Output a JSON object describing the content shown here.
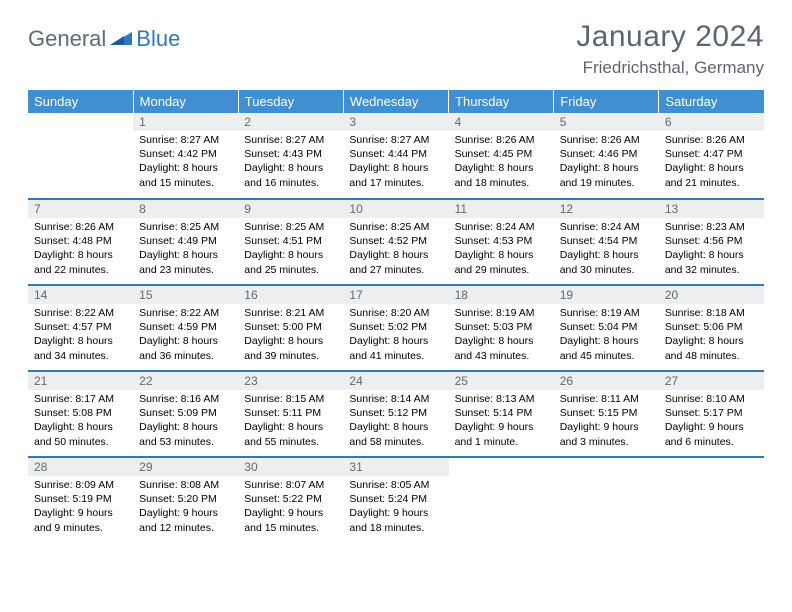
{
  "brand": {
    "part1": "General",
    "part2": "Blue"
  },
  "title": "January 2024",
  "location": "Friedrichsthal, Germany",
  "colors": {
    "header_bg": "#3f8fd2",
    "row_divider": "#2f78bc",
    "daynum_bg": "#eceeef",
    "title_color": "#5c6670",
    "brand_gray": "#5f6a72",
    "brand_blue": "#2f78bc"
  },
  "calendar": {
    "type": "table",
    "columns": [
      "Sunday",
      "Monday",
      "Tuesday",
      "Wednesday",
      "Thursday",
      "Friday",
      "Saturday"
    ],
    "cell_font_size_pt": 10.5,
    "header_font_size_pt": 13,
    "title_font_size_pt": 30,
    "weeks": [
      [
        null,
        {
          "n": "1",
          "sr": "8:27 AM",
          "ss": "4:42 PM",
          "dl": "8 hours and 15 minutes."
        },
        {
          "n": "2",
          "sr": "8:27 AM",
          "ss": "4:43 PM",
          "dl": "8 hours and 16 minutes."
        },
        {
          "n": "3",
          "sr": "8:27 AM",
          "ss": "4:44 PM",
          "dl": "8 hours and 17 minutes."
        },
        {
          "n": "4",
          "sr": "8:26 AM",
          "ss": "4:45 PM",
          "dl": "8 hours and 18 minutes."
        },
        {
          "n": "5",
          "sr": "8:26 AM",
          "ss": "4:46 PM",
          "dl": "8 hours and 19 minutes."
        },
        {
          "n": "6",
          "sr": "8:26 AM",
          "ss": "4:47 PM",
          "dl": "8 hours and 21 minutes."
        }
      ],
      [
        {
          "n": "7",
          "sr": "8:26 AM",
          "ss": "4:48 PM",
          "dl": "8 hours and 22 minutes."
        },
        {
          "n": "8",
          "sr": "8:25 AM",
          "ss": "4:49 PM",
          "dl": "8 hours and 23 minutes."
        },
        {
          "n": "9",
          "sr": "8:25 AM",
          "ss": "4:51 PM",
          "dl": "8 hours and 25 minutes."
        },
        {
          "n": "10",
          "sr": "8:25 AM",
          "ss": "4:52 PM",
          "dl": "8 hours and 27 minutes."
        },
        {
          "n": "11",
          "sr": "8:24 AM",
          "ss": "4:53 PM",
          "dl": "8 hours and 29 minutes."
        },
        {
          "n": "12",
          "sr": "8:24 AM",
          "ss": "4:54 PM",
          "dl": "8 hours and 30 minutes."
        },
        {
          "n": "13",
          "sr": "8:23 AM",
          "ss": "4:56 PM",
          "dl": "8 hours and 32 minutes."
        }
      ],
      [
        {
          "n": "14",
          "sr": "8:22 AM",
          "ss": "4:57 PM",
          "dl": "8 hours and 34 minutes."
        },
        {
          "n": "15",
          "sr": "8:22 AM",
          "ss": "4:59 PM",
          "dl": "8 hours and 36 minutes."
        },
        {
          "n": "16",
          "sr": "8:21 AM",
          "ss": "5:00 PM",
          "dl": "8 hours and 39 minutes."
        },
        {
          "n": "17",
          "sr": "8:20 AM",
          "ss": "5:02 PM",
          "dl": "8 hours and 41 minutes."
        },
        {
          "n": "18",
          "sr": "8:19 AM",
          "ss": "5:03 PM",
          "dl": "8 hours and 43 minutes."
        },
        {
          "n": "19",
          "sr": "8:19 AM",
          "ss": "5:04 PM",
          "dl": "8 hours and 45 minutes."
        },
        {
          "n": "20",
          "sr": "8:18 AM",
          "ss": "5:06 PM",
          "dl": "8 hours and 48 minutes."
        }
      ],
      [
        {
          "n": "21",
          "sr": "8:17 AM",
          "ss": "5:08 PM",
          "dl": "8 hours and 50 minutes."
        },
        {
          "n": "22",
          "sr": "8:16 AM",
          "ss": "5:09 PM",
          "dl": "8 hours and 53 minutes."
        },
        {
          "n": "23",
          "sr": "8:15 AM",
          "ss": "5:11 PM",
          "dl": "8 hours and 55 minutes."
        },
        {
          "n": "24",
          "sr": "8:14 AM",
          "ss": "5:12 PM",
          "dl": "8 hours and 58 minutes."
        },
        {
          "n": "25",
          "sr": "8:13 AM",
          "ss": "5:14 PM",
          "dl": "9 hours and 1 minute."
        },
        {
          "n": "26",
          "sr": "8:11 AM",
          "ss": "5:15 PM",
          "dl": "9 hours and 3 minutes."
        },
        {
          "n": "27",
          "sr": "8:10 AM",
          "ss": "5:17 PM",
          "dl": "9 hours and 6 minutes."
        }
      ],
      [
        {
          "n": "28",
          "sr": "8:09 AM",
          "ss": "5:19 PM",
          "dl": "9 hours and 9 minutes."
        },
        {
          "n": "29",
          "sr": "8:08 AM",
          "ss": "5:20 PM",
          "dl": "9 hours and 12 minutes."
        },
        {
          "n": "30",
          "sr": "8:07 AM",
          "ss": "5:22 PM",
          "dl": "9 hours and 15 minutes."
        },
        {
          "n": "31",
          "sr": "8:05 AM",
          "ss": "5:24 PM",
          "dl": "9 hours and 18 minutes."
        },
        null,
        null,
        null
      ]
    ]
  },
  "labels": {
    "sunrise": "Sunrise:",
    "sunset": "Sunset:",
    "daylight": "Daylight:"
  }
}
